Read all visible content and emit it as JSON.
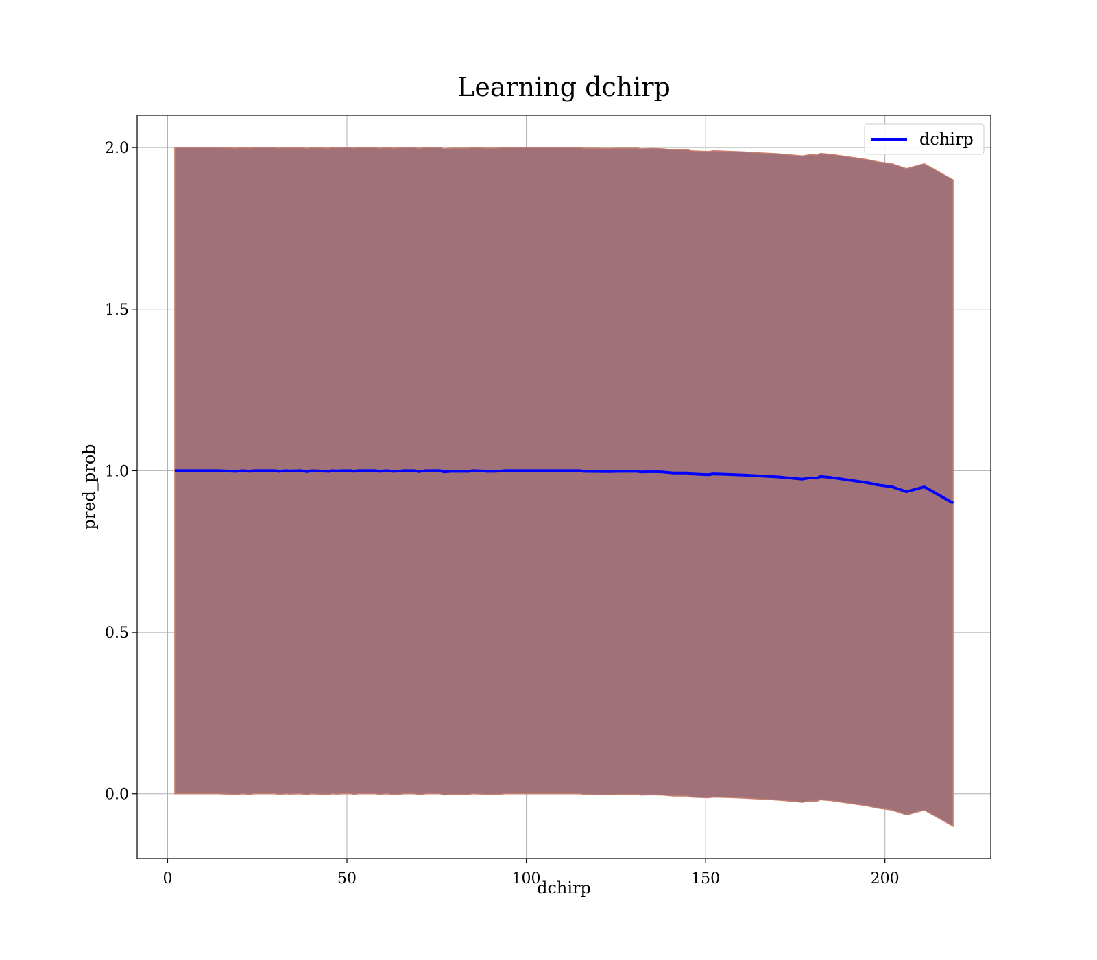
{
  "chart_data": {
    "type": "area",
    "title": "Learning dchirp",
    "xlabel": "dchirp",
    "ylabel": "pred_prob",
    "xlim": [
      -8.5,
      229.5
    ],
    "ylim": [
      -0.2,
      2.1
    ],
    "xticks": [
      0,
      50,
      100,
      150,
      200
    ],
    "yticks": [
      0.0,
      0.5,
      1.0,
      1.5,
      2.0
    ],
    "xtick_labels": [
      "0",
      "50",
      "100",
      "150",
      "200"
    ],
    "ytick_labels": [
      "0.0",
      "0.5",
      "1.0",
      "1.5",
      "2.0"
    ],
    "grid": true,
    "legend": {
      "position": "upper right",
      "entries": [
        "dchirp"
      ]
    },
    "band_color": "#a1717a",
    "band_edge_color": "#c87f6e",
    "line_color": "#0000ff",
    "series": [
      {
        "name": "dchirp",
        "x": [
          2,
          14,
          19,
          21,
          23,
          24,
          30,
          31,
          33,
          34,
          37,
          39,
          40,
          45,
          46,
          47,
          49,
          51,
          52,
          53,
          58,
          59,
          61,
          63,
          65,
          66,
          69,
          70,
          72,
          76,
          77,
          79,
          80,
          84,
          85,
          88,
          89,
          91,
          93,
          94,
          98,
          100,
          110,
          115,
          116,
          123,
          126,
          131,
          132,
          135,
          138,
          141,
          145,
          146,
          150,
          151,
          152,
          155,
          160,
          165,
          170,
          176,
          177,
          179,
          181,
          182,
          185,
          190,
          195,
          198,
          202,
          206,
          211,
          219
        ],
        "y": [
          1.0,
          1.0,
          0.998,
          1.0,
          0.998,
          1.0,
          1.0,
          0.998,
          1.0,
          0.999,
          1.0,
          0.997,
          1.0,
          0.998,
          1.0,
          0.999,
          1.0,
          1.0,
          0.998,
          1.0,
          1.0,
          0.998,
          1.0,
          0.998,
          0.999,
          1.0,
          1.0,
          0.997,
          1.0,
          1.0,
          0.996,
          0.998,
          0.998,
          0.998,
          1.0,
          0.999,
          0.998,
          0.998,
          0.999,
          1.0,
          1.0,
          1.0,
          1.0,
          1.0,
          0.998,
          0.997,
          0.998,
          0.998,
          0.996,
          0.997,
          0.996,
          0.993,
          0.993,
          0.99,
          0.988,
          0.988,
          0.99,
          0.989,
          0.987,
          0.984,
          0.981,
          0.975,
          0.974,
          0.978,
          0.977,
          0.982,
          0.979,
          0.971,
          0.963,
          0.956,
          0.95,
          0.935,
          0.95,
          0.9
        ],
        "lower": [
          0.0,
          0.0,
          -0.002,
          0.0,
          -0.002,
          0.0,
          0.0,
          -0.002,
          0.0,
          -0.001,
          0.0,
          -0.003,
          0.0,
          -0.002,
          0.0,
          -0.001,
          0.0,
          0.0,
          -0.002,
          0.0,
          0.0,
          -0.002,
          0.0,
          -0.002,
          -0.001,
          0.0,
          0.0,
          -0.003,
          0.0,
          0.0,
          -0.004,
          -0.002,
          -0.002,
          -0.002,
          0.0,
          -0.001,
          -0.002,
          -0.002,
          -0.001,
          0.0,
          0.0,
          0.0,
          0.0,
          0.0,
          -0.002,
          -0.003,
          -0.002,
          -0.002,
          -0.004,
          -0.003,
          -0.004,
          -0.007,
          -0.007,
          -0.01,
          -0.012,
          -0.012,
          -0.01,
          -0.011,
          -0.013,
          -0.016,
          -0.019,
          -0.025,
          -0.026,
          -0.022,
          -0.023,
          -0.018,
          -0.021,
          -0.029,
          -0.037,
          -0.044,
          -0.05,
          -0.065,
          -0.05,
          -0.1
        ],
        "upper": [
          2.0,
          2.0,
          1.998,
          2.0,
          1.998,
          2.0,
          2.0,
          1.998,
          2.0,
          1.999,
          2.0,
          1.997,
          2.0,
          1.998,
          2.0,
          1.999,
          2.0,
          2.0,
          1.998,
          2.0,
          2.0,
          1.998,
          2.0,
          1.998,
          1.999,
          2.0,
          2.0,
          1.997,
          2.0,
          2.0,
          1.996,
          1.998,
          1.998,
          1.998,
          2.0,
          1.999,
          1.998,
          1.998,
          1.999,
          2.0,
          2.0,
          2.0,
          2.0,
          2.0,
          1.998,
          1.997,
          1.998,
          1.998,
          1.996,
          1.997,
          1.996,
          1.993,
          1.993,
          1.99,
          1.988,
          1.988,
          1.99,
          1.989,
          1.987,
          1.984,
          1.981,
          1.975,
          1.974,
          1.978,
          1.977,
          1.982,
          1.979,
          1.971,
          1.963,
          1.956,
          1.95,
          1.935,
          1.95,
          1.9
        ]
      }
    ]
  }
}
